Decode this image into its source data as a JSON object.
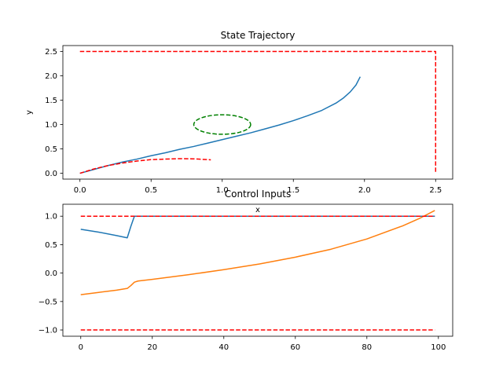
{
  "chart_data": [
    {
      "type": "line",
      "title": "State Trajectory",
      "xlabel": "x",
      "ylabel": "y",
      "xlim": [
        -0.12,
        2.62
      ],
      "ylim": [
        -0.12,
        2.62
      ],
      "xticks": [
        0.0,
        0.5,
        1.0,
        1.5,
        2.0,
        2.5
      ],
      "xtick_labels": [
        "0.0",
        "0.5",
        "1.0",
        "1.5",
        "2.0",
        "2.5"
      ],
      "yticks": [
        0.0,
        0.5,
        1.0,
        1.5,
        2.0,
        2.5
      ],
      "ytick_labels": [
        "0.0",
        "0.5",
        "1.0",
        "1.5",
        "2.0",
        "2.5"
      ],
      "grid": false,
      "series": [
        {
          "color": "#1f77b4",
          "style": "solid",
          "x": [
            0.0,
            0.1,
            0.2,
            0.3,
            0.4,
            0.5,
            0.6,
            0.7,
            0.8,
            0.9,
            1.0,
            1.1,
            1.2,
            1.3,
            1.4,
            1.5,
            1.6,
            1.7,
            1.8,
            1.85,
            1.9,
            1.94,
            1.97
          ],
          "y": [
            0.0,
            0.08,
            0.16,
            0.23,
            0.29,
            0.36,
            0.42,
            0.49,
            0.55,
            0.62,
            0.69,
            0.76,
            0.83,
            0.91,
            0.99,
            1.08,
            1.18,
            1.29,
            1.44,
            1.54,
            1.67,
            1.81,
            1.98
          ]
        },
        {
          "color": "#ff0000",
          "style": "dashed",
          "x": [
            0.0,
            0.1,
            0.2,
            0.3,
            0.4,
            0.5,
            0.6,
            0.7,
            0.8,
            0.9,
            0.92
          ],
          "y": [
            0.0,
            0.09,
            0.16,
            0.21,
            0.25,
            0.28,
            0.29,
            0.3,
            0.295,
            0.28,
            0.275
          ]
        },
        {
          "color": "#ff0000",
          "style": "dashed",
          "x": [
            0.0,
            2.5,
            2.5
          ],
          "y": [
            2.5,
            2.5,
            0.0
          ]
        }
      ],
      "ellipses": [
        {
          "color": "#008000",
          "style": "dashed",
          "center": [
            1.0,
            1.0
          ],
          "radius_x": 0.2,
          "radius_y": 0.2
        }
      ]
    },
    {
      "type": "line",
      "title": "Control Inputs",
      "xlabel": "",
      "ylabel": "",
      "xlim": [
        -5,
        104
      ],
      "ylim": [
        -1.11,
        1.21
      ],
      "xticks": [
        0,
        20,
        40,
        60,
        80,
        100
      ],
      "xtick_labels": [
        "0",
        "20",
        "40",
        "60",
        "80",
        "100"
      ],
      "yticks": [
        -1.0,
        -0.5,
        0.0,
        0.5,
        1.0
      ],
      "ytick_labels": [
        "−1.0",
        "−0.5",
        "0.0",
        "0.5",
        "1.0"
      ],
      "grid": false,
      "series": [
        {
          "color": "#1f77b4",
          "style": "solid",
          "x": [
            0,
            5,
            10,
            13,
            14,
            15,
            16,
            20,
            40,
            60,
            80,
            99
          ],
          "y": [
            0.77,
            0.72,
            0.66,
            0.62,
            0.82,
            1.0,
            1.0,
            1.0,
            1.0,
            1.0,
            1.0,
            1.0
          ]
        },
        {
          "color": "#ff7f0e",
          "style": "solid",
          "x": [
            0,
            5,
            10,
            13,
            14,
            15,
            16,
            20,
            30,
            40,
            50,
            60,
            70,
            80,
            90,
            95,
            99
          ],
          "y": [
            -0.38,
            -0.34,
            -0.3,
            -0.27,
            -0.22,
            -0.16,
            -0.14,
            -0.11,
            -0.03,
            0.06,
            0.16,
            0.28,
            0.42,
            0.6,
            0.83,
            0.97,
            1.1
          ]
        },
        {
          "color": "#ff0000",
          "style": "dashed",
          "x": [
            0,
            99
          ],
          "y": [
            1.0,
            1.0
          ]
        },
        {
          "color": "#ff0000",
          "style": "dashed",
          "x": [
            0,
            99
          ],
          "y": [
            -1.0,
            -1.0
          ]
        }
      ]
    }
  ]
}
